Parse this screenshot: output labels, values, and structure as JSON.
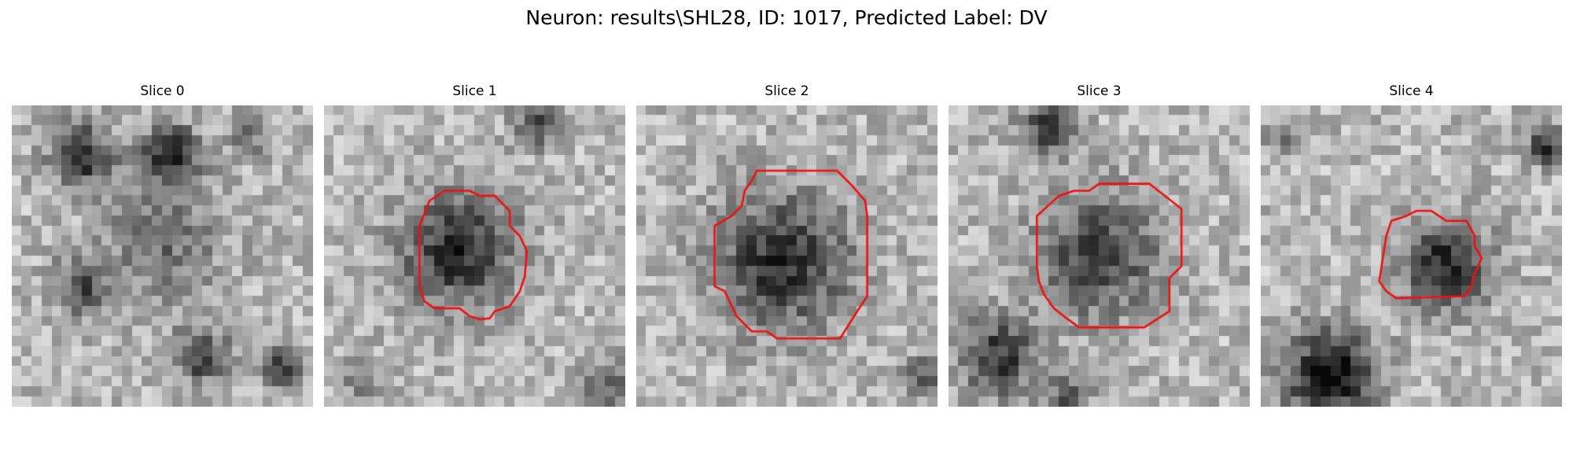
{
  "figure": {
    "title": "Neuron: results\\SHL28, ID: 1017, Predicted Label: DV"
  },
  "colors": {
    "contour": "#ee1111"
  },
  "panels": [
    {
      "title": "Slice 0",
      "image_description": "grayscale noisy microscopy tile with several dark cell bodies: two dark blobs top-left and top-center, a gray band across the middle, dark blobs lower-left and bottom-center; no contour",
      "contour": false
    },
    {
      "title": "Slice 1",
      "image_description": "grayscale noisy tile with a dark round cell body in the center outlined by an irregular red contour",
      "contour": true
    },
    {
      "title": "Slice 2",
      "image_description": "grayscale noisy tile with a large dark round cell body in the center outlined by a large octagonal red contour",
      "contour": true
    },
    {
      "title": "Slice 3",
      "image_description": "grayscale noisy tile with a dark cell body in the center outlined by a red polygonal contour, darker regions at the top and bottom-left",
      "contour": true
    },
    {
      "title": "Slice 4",
      "image_description": "grayscale noisy tile with a small dark cell body right of center outlined by a small red contour, a large dark blob at the bottom-left and a dark spot at the top-right",
      "contour": true
    }
  ]
}
